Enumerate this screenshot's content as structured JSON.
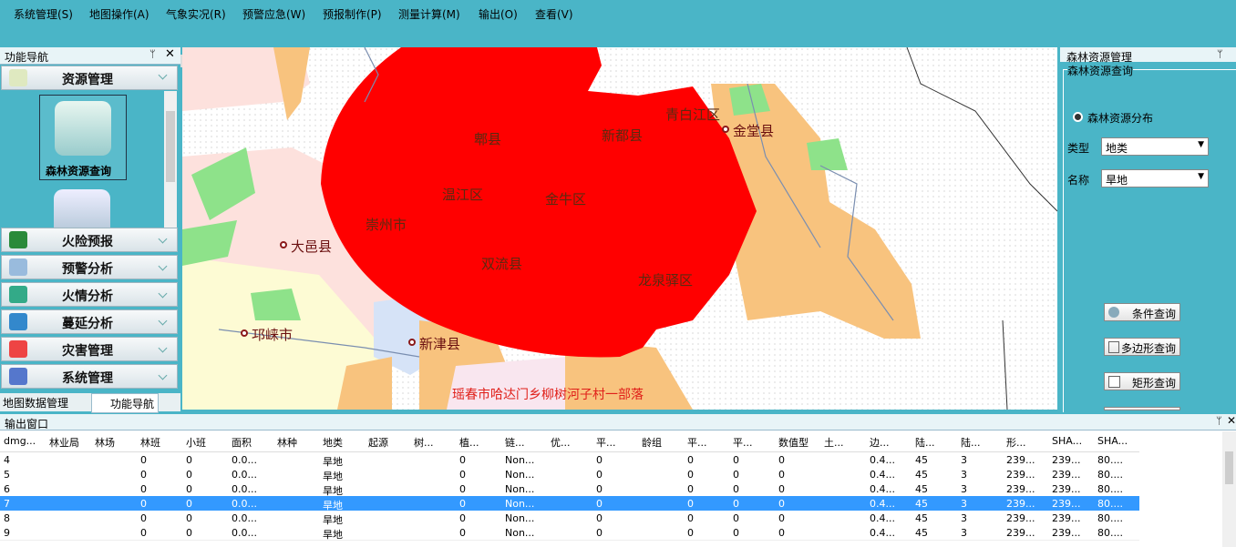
{
  "menu": [
    "系统管理(S)",
    "地图操作(A)",
    "气象实况(R)",
    "预警应急(W)",
    "预报制作(P)",
    "测量计算(M)",
    "输出(O)",
    "查看(V)"
  ],
  "nav": {
    "title": "功能导航",
    "sections": [
      "资源管理",
      "火险预报",
      "预警分析",
      "火情分析",
      "蔓延分析",
      "灾害管理",
      "系统管理"
    ],
    "item": "森林资源查询",
    "tabs": [
      "地图数据管理",
      "功能导航"
    ]
  },
  "map": {
    "labels": [
      "郫县",
      "新都县",
      "青白江区",
      "金堂县",
      "温江区",
      "金牛区",
      "崇州市",
      "双流县",
      "大邑县",
      "龙泉驿区",
      "邛崃市",
      "新津县"
    ],
    "note": "瑶春市哈达门乡柳树河子村一部落"
  },
  "right_panel": {
    "title": "森林资源管理",
    "group": "森林资源查询",
    "radio": "森林资源分布",
    "type_label": "类型",
    "type_value": "地类",
    "name_label": "名称",
    "name_value": "旱地",
    "buttons": [
      "条件查询",
      "多边形查询",
      "矩形查询"
    ]
  },
  "output": {
    "title": "输出窗口",
    "headers": [
      "dmg...",
      "林业局",
      "林场",
      "林班",
      "小班",
      "面积",
      "林种",
      "地类",
      "起源",
      "树...",
      "植...",
      "链...",
      "优...",
      "平...",
      "龄组",
      "平...",
      "平...",
      "数值型",
      "土...",
      "边...",
      "陆...",
      "陆...",
      "形...",
      "SHA...",
      "SHA..."
    ],
    "rows": [
      [
        "4",
        null,
        null,
        "0",
        "0",
        "0.0...",
        null,
        "旱地",
        null,
        null,
        "0",
        "Non...",
        null,
        "0",
        null,
        "0",
        "0",
        "0",
        null,
        "0.4...",
        "45",
        "3",
        "239...",
        "239...",
        "80...."
      ],
      [
        "5",
        null,
        null,
        "0",
        "0",
        "0.0...",
        null,
        "旱地",
        null,
        null,
        "0",
        "Non...",
        null,
        "0",
        null,
        "0",
        "0",
        "0",
        null,
        "0.4...",
        "45",
        "3",
        "239...",
        "239...",
        "80...."
      ],
      [
        "6",
        null,
        null,
        "0",
        "0",
        "0.0...",
        null,
        "旱地",
        null,
        null,
        "0",
        "Non...",
        null,
        "0",
        null,
        "0",
        "0",
        "0",
        null,
        "0.4...",
        "45",
        "3",
        "239...",
        "239...",
        "80...."
      ],
      [
        "7",
        null,
        null,
        "0",
        "0",
        "0.0...",
        null,
        "旱地",
        null,
        null,
        "0",
        "Non...",
        null,
        "0",
        null,
        "0",
        "0",
        "0",
        null,
        "0.4...",
        "45",
        "3",
        "239...",
        "239...",
        "80...."
      ],
      [
        "8",
        null,
        null,
        "0",
        "0",
        "0.0...",
        null,
        "旱地",
        null,
        null,
        "0",
        "Non...",
        null,
        "0",
        null,
        "0",
        "0",
        "0",
        null,
        "0.4...",
        "45",
        "3",
        "239...",
        "239...",
        "80...."
      ],
      [
        "9",
        null,
        null,
        "0",
        "0",
        "0.0...",
        null,
        "旱地",
        null,
        null,
        "0",
        "Non...",
        null,
        "0",
        null,
        "0",
        "0",
        "0",
        null,
        "0.4...",
        "45",
        "3",
        "239...",
        "239...",
        "80...."
      ]
    ],
    "selected_row": 3
  }
}
